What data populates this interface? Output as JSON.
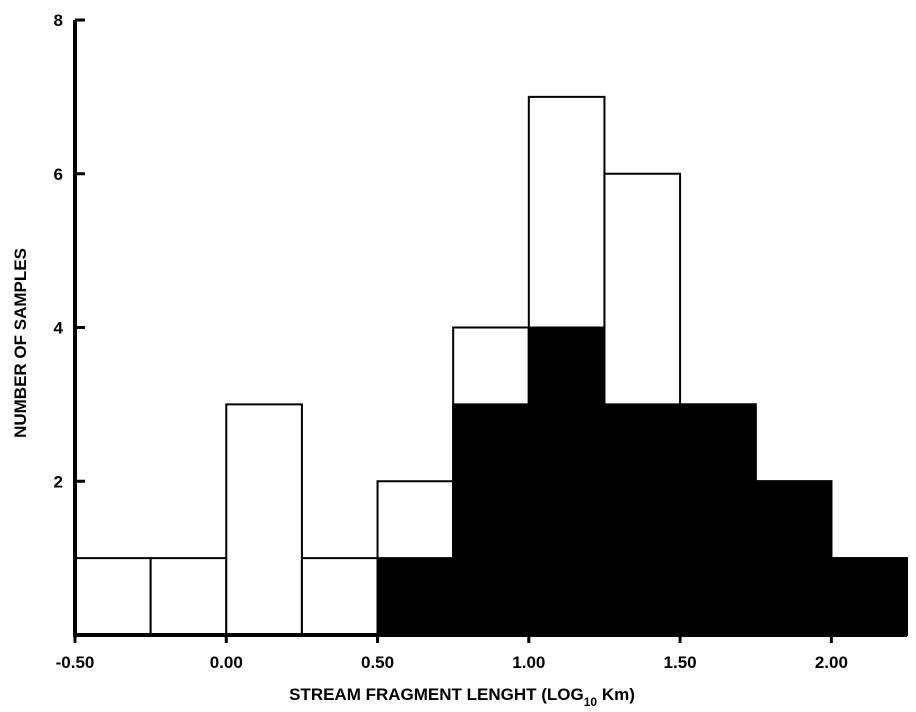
{
  "chart_data": {
    "type": "bar",
    "title": "",
    "xlabel": "STREAM FRAGMENT LENGHT (LOG",
    "xlabel_subscript": "10",
    "xlabel_suffix": " Km)",
    "ylabel": "NUMBER OF SAMPLES",
    "xlim": [
      -0.5,
      2.25
    ],
    "ylim": [
      0,
      8
    ],
    "grid": false,
    "x_ticks": [
      -0.5,
      0.0,
      0.5,
      1.0,
      1.5,
      2.0
    ],
    "x_tick_labels": [
      "-0.50",
      "0.00",
      "0.50",
      "1.00",
      "1.50",
      "2.00"
    ],
    "y_ticks": [
      2,
      4,
      6,
      8
    ],
    "y_tick_labels": [
      "2",
      "4",
      "6",
      "8"
    ],
    "bin_edges": [
      -0.5,
      -0.25,
      0.0,
      0.25,
      0.5,
      0.75,
      1.0,
      1.25,
      1.5,
      1.75,
      2.0,
      2.25
    ],
    "series": [
      {
        "fill": "#ffffff",
        "values": [
          1,
          1,
          3,
          1,
          2,
          4,
          7,
          6,
          3,
          2,
          1
        ]
      },
      {
        "fill": "#000000",
        "values": [
          0,
          0,
          0,
          0,
          1,
          3,
          4,
          3,
          3,
          2,
          1
        ]
      }
    ]
  }
}
